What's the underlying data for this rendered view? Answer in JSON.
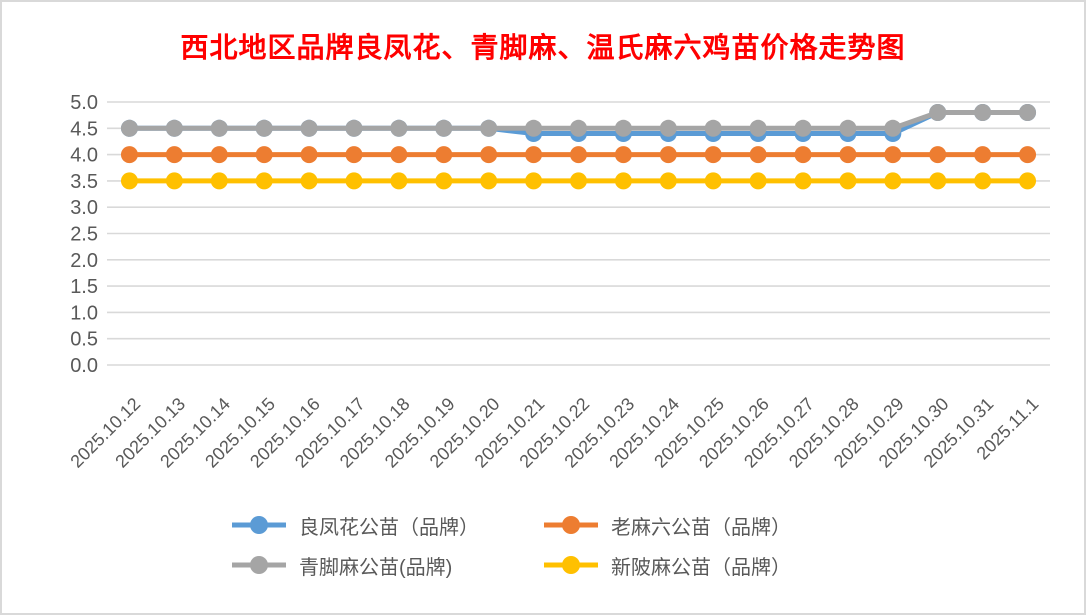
{
  "window": {
    "background": "#FFFFFF",
    "frame_border_color": "#D9D9D9"
  },
  "title": {
    "text": "西北地区品牌良凤花、青脚麻、温氏麻六鸡苗价格走势图",
    "color": "#FF0000"
  },
  "chart_data": {
    "type": "line",
    "title": "西北地区品牌良凤花、青脚麻、温氏麻六鸡苗价格走势图",
    "categories": [
      "2025.10.12",
      "2025.10.13",
      "2025.10.14",
      "2025.10.15",
      "2025.10.16",
      "2025.10.17",
      "2025.10.18",
      "2025.10.19",
      "2025.10.20",
      "2025.10.21",
      "2025.10.22",
      "2025.10.23",
      "2025.10.24",
      "2025.10.25",
      "2025.10.26",
      "2025.10.27",
      "2025.10.28",
      "2025.10.29",
      "2025.10.30",
      "2025.10.31",
      "2025.11.1"
    ],
    "series": [
      {
        "name": "良凤花公苗（品牌）",
        "color": "#5B9BD5",
        "values": [
          4.5,
          4.5,
          4.5,
          4.5,
          4.5,
          4.5,
          4.5,
          4.5,
          4.5,
          4.4,
          4.4,
          4.4,
          4.4,
          4.4,
          4.4,
          4.4,
          4.4,
          4.4,
          4.8,
          4.8,
          4.8
        ]
      },
      {
        "name": "老麻六公苗（品牌）",
        "color": "#ED7D31",
        "values": [
          4.0,
          4.0,
          4.0,
          4.0,
          4.0,
          4.0,
          4.0,
          4.0,
          4.0,
          4.0,
          4.0,
          4.0,
          4.0,
          4.0,
          4.0,
          4.0,
          4.0,
          4.0,
          4.0,
          4.0,
          4.0
        ]
      },
      {
        "name": "青脚麻公苗(品牌)",
        "color": "#A5A5A5",
        "values": [
          4.5,
          4.5,
          4.5,
          4.5,
          4.5,
          4.5,
          4.5,
          4.5,
          4.5,
          4.5,
          4.5,
          4.5,
          4.5,
          4.5,
          4.5,
          4.5,
          4.5,
          4.5,
          4.8,
          4.8,
          4.8
        ]
      },
      {
        "name": "新陂麻公苗（品牌）",
        "color": "#FFC000",
        "values": [
          3.5,
          3.5,
          3.5,
          3.5,
          3.5,
          3.5,
          3.5,
          3.5,
          3.5,
          3.5,
          3.5,
          3.5,
          3.5,
          3.5,
          3.5,
          3.5,
          3.5,
          3.5,
          3.5,
          3.5,
          3.5
        ]
      }
    ],
    "xlabel": "",
    "ylabel": "",
    "y_axis": {
      "min": 0.0,
      "max": 5.0,
      "step": 0.5,
      "tick_labels": [
        "0.0",
        "0.5",
        "1.0",
        "1.5",
        "2.0",
        "2.5",
        "3.0",
        "3.5",
        "4.0",
        "4.5",
        "5.0"
      ]
    },
    "grid": true,
    "gridline_color": "#D9D9D9",
    "axis_label_color": "#595959",
    "legend_position": "bottom",
    "marker": "circle"
  }
}
